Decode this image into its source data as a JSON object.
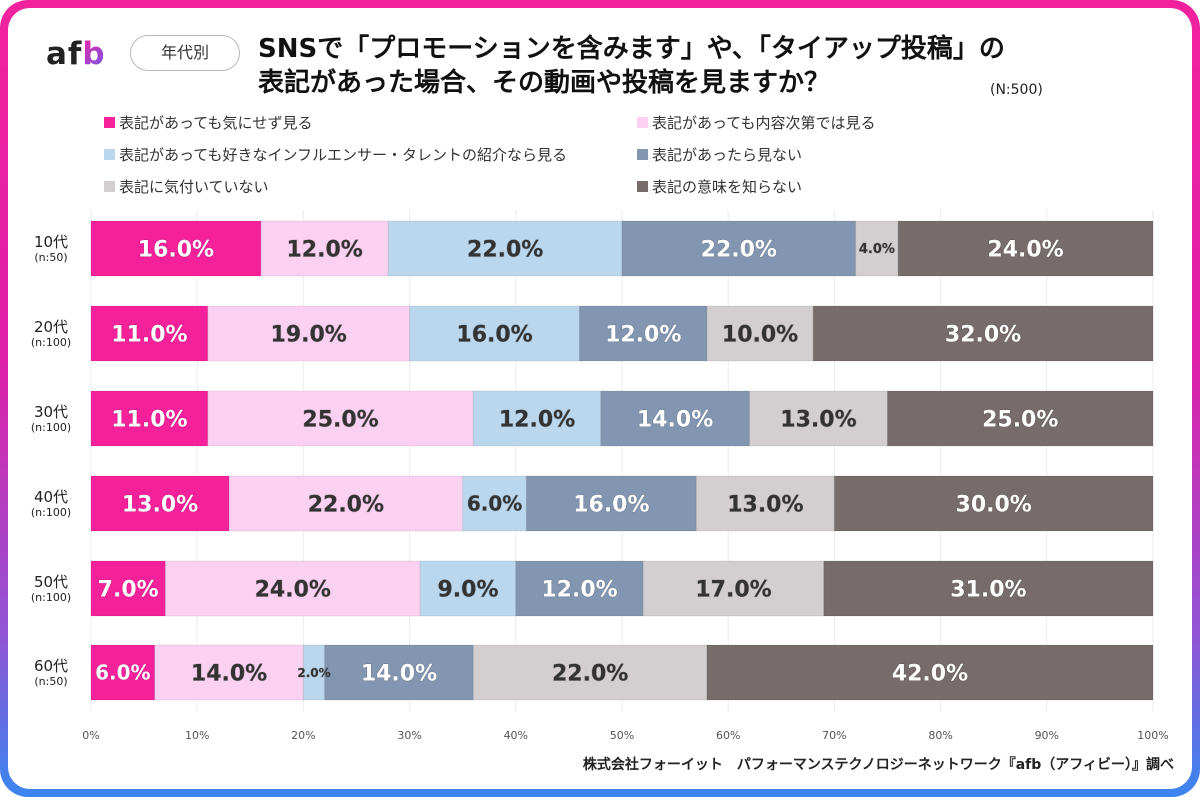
{
  "header": {
    "logo_text_a": "af",
    "logo_text_b": "b",
    "category_pill": "年代別",
    "title_line1": "SNSで「プロモーションを含みます」や、「タイアップ投稿」の",
    "title_line2": "表記があった場合、その動画や投稿を見ますか？",
    "sample_size": "(N:500)"
  },
  "footer": {
    "source": "株式会社フォーイット　パフォーマンステクノロジーネットワーク『afb（アフィビー）』調べ"
  },
  "chart_data": {
    "type": "bar",
    "orientation": "horizontal",
    "stacked": true,
    "title": "SNSで「プロモーションを含みます」や、「タイアップ投稿」の表記があった場合、その動画や投稿を見ますか？",
    "xlabel": "",
    "ylabel": "",
    "xlim": [
      0,
      100
    ],
    "x_ticks": [
      "0%",
      "10%",
      "20%",
      "30%",
      "40%",
      "50%",
      "60%",
      "70%",
      "80%",
      "90%",
      "100%"
    ],
    "grid": true,
    "legend_position": "top",
    "categories": [
      {
        "age": "10代",
        "n": "(n:50)"
      },
      {
        "age": "20代",
        "n": "(n:100)"
      },
      {
        "age": "30代",
        "n": "(n:100)"
      },
      {
        "age": "40代",
        "n": "(n:100)"
      },
      {
        "age": "50代",
        "n": "(n:100)"
      },
      {
        "age": "60代",
        "n": "(n:50)"
      }
    ],
    "series": [
      {
        "name": "表記があっても気にせず見る",
        "color": "#f5219b",
        "label_color": "#ffffff",
        "values": [
          16.0,
          11.0,
          11.0,
          13.0,
          7.0,
          6.0
        ]
      },
      {
        "name": "表記があっても内容次第では見る",
        "color": "#fbd1f1",
        "label_color": "#333333",
        "values": [
          12.0,
          19.0,
          25.0,
          22.0,
          24.0,
          14.0
        ]
      },
      {
        "name": "表記があっても好きなインフルエンサー・タレントの紹介なら見る",
        "color": "#bad7ee",
        "label_color": "#333333",
        "values": [
          22.0,
          16.0,
          12.0,
          6.0,
          9.0,
          2.0
        ]
      },
      {
        "name": "表記があったら見ない",
        "color": "#8296b1",
        "label_color": "#ffffff",
        "values": [
          22.0,
          12.0,
          14.0,
          16.0,
          12.0,
          14.0
        ]
      },
      {
        "name": "表記に気付いていない",
        "color": "#d3cfd0",
        "label_color": "#333333",
        "values": [
          4.0,
          10.0,
          13.0,
          13.0,
          17.0,
          22.0
        ]
      },
      {
        "name": "表記の意味を知らない",
        "color": "#766c6b",
        "label_color": "#ffffff",
        "values": [
          24.0,
          32.0,
          25.0,
          30.0,
          31.0,
          42.0
        ]
      }
    ]
  }
}
